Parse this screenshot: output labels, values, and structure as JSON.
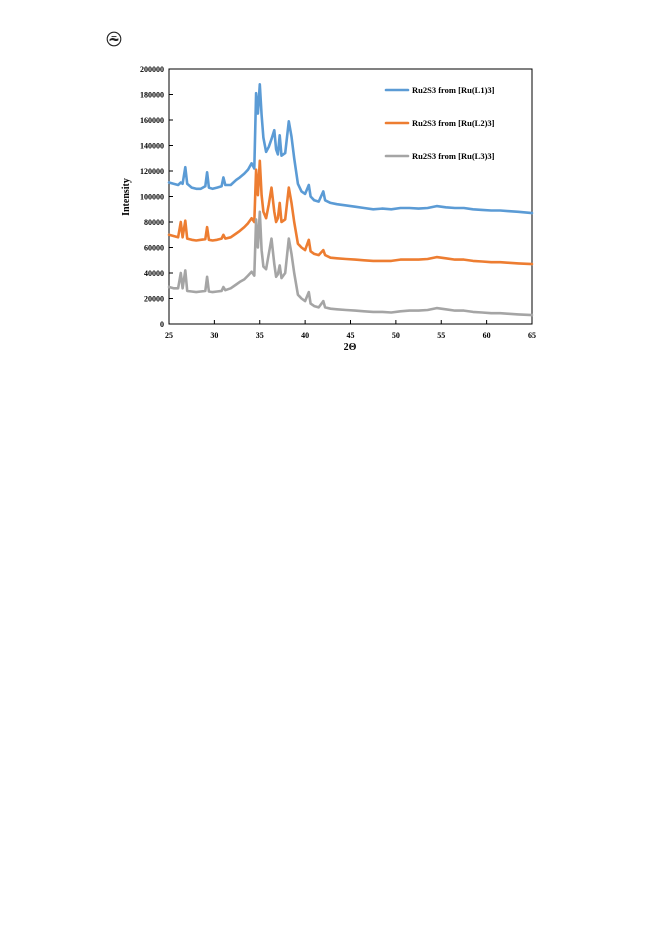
{
  "chart_data": {
    "type": "line",
    "title": "",
    "xlabel": "2Θ",
    "ylabel": "Intensity",
    "xlim": [
      25,
      65
    ],
    "ylim": [
      0,
      200000
    ],
    "xticks": [
      25,
      30,
      35,
      40,
      45,
      50,
      55,
      60,
      65
    ],
    "yticks": [
      0,
      20000,
      40000,
      60000,
      80000,
      100000,
      120000,
      140000,
      160000,
      180000,
      200000
    ],
    "grid": false,
    "legend_position": "top-right",
    "series": [
      {
        "name": "Ru2S3 from [Ru(L1)3]",
        "color": "#5b9bd5",
        "points": [
          [
            25,
            111000
          ],
          [
            25.5,
            110000
          ],
          [
            26,
            109000
          ],
          [
            26.3,
            111000
          ],
          [
            26.5,
            110000
          ],
          [
            26.8,
            123000
          ],
          [
            27.0,
            110000
          ],
          [
            27.5,
            107000
          ],
          [
            28,
            106000
          ],
          [
            28.5,
            106000
          ],
          [
            29,
            108000
          ],
          [
            29.2,
            119000
          ],
          [
            29.4,
            107000
          ],
          [
            29.8,
            106000
          ],
          [
            30.3,
            107000
          ],
          [
            30.8,
            108000
          ],
          [
            31.0,
            115000
          ],
          [
            31.2,
            109000
          ],
          [
            31.8,
            109000
          ],
          [
            32.4,
            113000
          ],
          [
            32.8,
            115000
          ],
          [
            33.3,
            118000
          ],
          [
            33.7,
            121000
          ],
          [
            34.1,
            126000
          ],
          [
            34.4,
            122000
          ],
          [
            34.6,
            181000
          ],
          [
            34.8,
            165000
          ],
          [
            35.0,
            188000
          ],
          [
            35.2,
            164000
          ],
          [
            35.4,
            146000
          ],
          [
            35.7,
            135000
          ],
          [
            36.0,
            139000
          ],
          [
            36.3,
            145000
          ],
          [
            36.6,
            152000
          ],
          [
            36.8,
            137000
          ],
          [
            37.0,
            133000
          ],
          [
            37.2,
            148000
          ],
          [
            37.4,
            132000
          ],
          [
            37.8,
            134000
          ],
          [
            38.2,
            159000
          ],
          [
            38.5,
            147000
          ],
          [
            38.8,
            130000
          ],
          [
            39.2,
            110000
          ],
          [
            39.6,
            104000
          ],
          [
            40.0,
            102000
          ],
          [
            40.4,
            109000
          ],
          [
            40.6,
            100000
          ],
          [
            41.0,
            97000
          ],
          [
            41.5,
            96000
          ],
          [
            42.0,
            104000
          ],
          [
            42.2,
            97000
          ],
          [
            42.8,
            95000
          ],
          [
            43.5,
            94000
          ],
          [
            44.5,
            93000
          ],
          [
            45.5,
            92000
          ],
          [
            46.5,
            91000
          ],
          [
            47.5,
            90000
          ],
          [
            48.5,
            90500
          ],
          [
            49.5,
            90000
          ],
          [
            50.5,
            91000
          ],
          [
            51.5,
            91000
          ],
          [
            52.5,
            90500
          ],
          [
            53.5,
            91000
          ],
          [
            54.5,
            92500
          ],
          [
            55.5,
            91500
          ],
          [
            56.5,
            91000
          ],
          [
            57.5,
            91000
          ],
          [
            58.5,
            90000
          ],
          [
            59.5,
            89500
          ],
          [
            60.5,
            89000
          ],
          [
            61.5,
            89000
          ],
          [
            62.5,
            88500
          ],
          [
            63.5,
            88000
          ],
          [
            65,
            87000
          ]
        ]
      },
      {
        "name": "Ru2S3 from [Ru(L2)3]",
        "color": "#ed7d31",
        "points": [
          [
            25,
            70000
          ],
          [
            25.5,
            69000
          ],
          [
            26,
            68000
          ],
          [
            26.3,
            80000
          ],
          [
            26.5,
            68000
          ],
          [
            26.8,
            81000
          ],
          [
            27.0,
            67000
          ],
          [
            27.5,
            66000
          ],
          [
            28,
            65500
          ],
          [
            28.5,
            66000
          ],
          [
            29,
            66500
          ],
          [
            29.2,
            76000
          ],
          [
            29.4,
            66000
          ],
          [
            29.8,
            65500
          ],
          [
            30.3,
            66000
          ],
          [
            30.8,
            67000
          ],
          [
            31.0,
            70000
          ],
          [
            31.2,
            67000
          ],
          [
            31.8,
            68000
          ],
          [
            32.4,
            71000
          ],
          [
            32.8,
            73000
          ],
          [
            33.3,
            76000
          ],
          [
            33.7,
            79000
          ],
          [
            34.1,
            83000
          ],
          [
            34.4,
            80000
          ],
          [
            34.6,
            121000
          ],
          [
            34.8,
            101000
          ],
          [
            35.0,
            128000
          ],
          [
            35.2,
            101000
          ],
          [
            35.4,
            88000
          ],
          [
            35.7,
            83000
          ],
          [
            36.0,
            94000
          ],
          [
            36.3,
            107000
          ],
          [
            36.6,
            88000
          ],
          [
            36.8,
            80000
          ],
          [
            37.0,
            83000
          ],
          [
            37.2,
            95000
          ],
          [
            37.4,
            80000
          ],
          [
            37.8,
            82000
          ],
          [
            38.2,
            107000
          ],
          [
            38.5,
            95000
          ],
          [
            38.8,
            80000
          ],
          [
            39.2,
            63000
          ],
          [
            39.6,
            60000
          ],
          [
            40.0,
            58000
          ],
          [
            40.4,
            66000
          ],
          [
            40.6,
            57000
          ],
          [
            41.0,
            55000
          ],
          [
            41.5,
            54000
          ],
          [
            42.0,
            58000
          ],
          [
            42.2,
            54000
          ],
          [
            42.8,
            52000
          ],
          [
            43.5,
            51500
          ],
          [
            44.5,
            51000
          ],
          [
            45.5,
            50500
          ],
          [
            46.5,
            50000
          ],
          [
            47.5,
            49500
          ],
          [
            48.5,
            49500
          ],
          [
            49.5,
            49500
          ],
          [
            50.5,
            50500
          ],
          [
            51.5,
            50500
          ],
          [
            52.5,
            50500
          ],
          [
            53.5,
            51000
          ],
          [
            54.5,
            52500
          ],
          [
            55.5,
            51500
          ],
          [
            56.5,
            50500
          ],
          [
            57.5,
            50500
          ],
          [
            58.5,
            49500
          ],
          [
            59.5,
            49000
          ],
          [
            60.5,
            48500
          ],
          [
            61.5,
            48500
          ],
          [
            62.5,
            48000
          ],
          [
            63.5,
            47500
          ],
          [
            65,
            47000
          ]
        ]
      },
      {
        "name": "Ru2S3 from [Ru(L3)3]",
        "color": "#a5a5a5",
        "points": [
          [
            25,
            29000
          ],
          [
            25.5,
            28000
          ],
          [
            26,
            28000
          ],
          [
            26.3,
            40000
          ],
          [
            26.5,
            28000
          ],
          [
            26.8,
            42000
          ],
          [
            27.0,
            26000
          ],
          [
            27.5,
            25500
          ],
          [
            28,
            25000
          ],
          [
            28.5,
            25500
          ],
          [
            29,
            26000
          ],
          [
            29.2,
            37000
          ],
          [
            29.4,
            25500
          ],
          [
            29.8,
            25000
          ],
          [
            30.3,
            25500
          ],
          [
            30.8,
            26000
          ],
          [
            31.0,
            29000
          ],
          [
            31.2,
            26500
          ],
          [
            31.8,
            28000
          ],
          [
            32.4,
            31000
          ],
          [
            32.8,
            33000
          ],
          [
            33.3,
            35000
          ],
          [
            33.7,
            38000
          ],
          [
            34.1,
            41000
          ],
          [
            34.4,
            38000
          ],
          [
            34.6,
            82000
          ],
          [
            34.8,
            60000
          ],
          [
            35.0,
            88000
          ],
          [
            35.2,
            58000
          ],
          [
            35.4,
            45000
          ],
          [
            35.7,
            43000
          ],
          [
            36.0,
            55000
          ],
          [
            36.3,
            67000
          ],
          [
            36.6,
            47000
          ],
          [
            36.8,
            37000
          ],
          [
            37.0,
            39000
          ],
          [
            37.2,
            46000
          ],
          [
            37.4,
            36000
          ],
          [
            37.8,
            40000
          ],
          [
            38.2,
            67000
          ],
          [
            38.5,
            55000
          ],
          [
            38.8,
            40000
          ],
          [
            39.2,
            23000
          ],
          [
            39.6,
            20000
          ],
          [
            40.0,
            18000
          ],
          [
            40.4,
            25000
          ],
          [
            40.6,
            16000
          ],
          [
            41.0,
            14000
          ],
          [
            41.5,
            13000
          ],
          [
            42.0,
            18000
          ],
          [
            42.2,
            13000
          ],
          [
            42.8,
            12000
          ],
          [
            43.5,
            11500
          ],
          [
            44.5,
            11000
          ],
          [
            45.5,
            10500
          ],
          [
            46.5,
            10000
          ],
          [
            47.5,
            9500
          ],
          [
            48.5,
            9500
          ],
          [
            49.5,
            9000
          ],
          [
            50.5,
            10000
          ],
          [
            51.5,
            10500
          ],
          [
            52.5,
            10500
          ],
          [
            53.5,
            11000
          ],
          [
            54.5,
            12500
          ],
          [
            55.5,
            11500
          ],
          [
            56.5,
            10500
          ],
          [
            57.5,
            10500
          ],
          [
            58.5,
            9500
          ],
          [
            59.5,
            9000
          ],
          [
            60.5,
            8500
          ],
          [
            61.5,
            8500
          ],
          [
            62.5,
            8000
          ],
          [
            63.5,
            7500
          ],
          [
            65,
            7000
          ]
        ]
      }
    ]
  },
  "page_icon": "circled-logo-icon"
}
